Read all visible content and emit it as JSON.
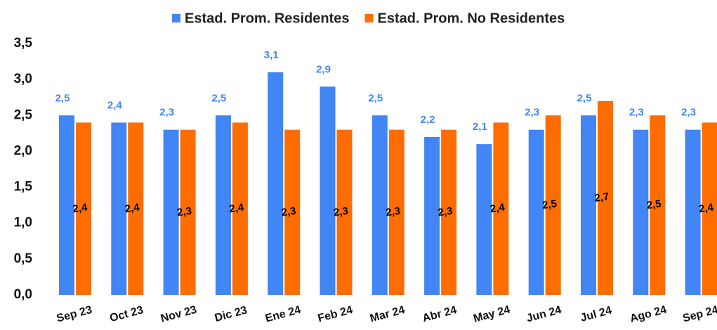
{
  "chart_data": {
    "type": "bar",
    "categories": [
      "Sep 23",
      "Oct 23",
      "Nov 23",
      "Dic 23",
      "Ene 24",
      "Feb 24",
      "Mar 24",
      "Abr 24",
      "May 24",
      "Jun 24",
      "Jul 24",
      "Ago 24",
      "Sep 24"
    ],
    "series": [
      {
        "name": "Estad. Prom. Residentes",
        "color": "#4285f4",
        "values": [
          2.5,
          2.4,
          2.3,
          2.5,
          3.1,
          2.9,
          2.5,
          2.2,
          2.1,
          2.3,
          2.5,
          2.3,
          2.3
        ],
        "value_labels": [
          "2,5",
          "2,4",
          "2,3",
          "2,5",
          "3,1",
          "2,9",
          "2,5",
          "2,2",
          "2,1",
          "2,3",
          "2,5",
          "2,3",
          "2,3"
        ]
      },
      {
        "name": "Estad. Prom. No Residentes",
        "color": "#ff6d01",
        "values": [
          2.4,
          2.4,
          2.3,
          2.4,
          2.3,
          2.3,
          2.3,
          2.3,
          2.4,
          2.5,
          2.7,
          2.5,
          2.4
        ],
        "value_labels": [
          "2,4",
          "2,4",
          "2,3",
          "2,4",
          "2,3",
          "2,3",
          "2,3",
          "2,3",
          "2,4",
          "2,5",
          "2,7",
          "2,5",
          "2,4"
        ]
      }
    ],
    "ylim": [
      0,
      3.5
    ],
    "yticks": [
      {
        "value": 0,
        "label": "0,0"
      },
      {
        "value": 0.5,
        "label": "0,5"
      },
      {
        "value": 1,
        "label": "1,0"
      },
      {
        "value": 1.5,
        "label": "1,5"
      },
      {
        "value": 2,
        "label": "2,0"
      },
      {
        "value": 2.5,
        "label": "2,5"
      },
      {
        "value": 3,
        "label": "3,0"
      },
      {
        "value": 3.5,
        "label": "3,5"
      }
    ],
    "legend": "top"
  }
}
